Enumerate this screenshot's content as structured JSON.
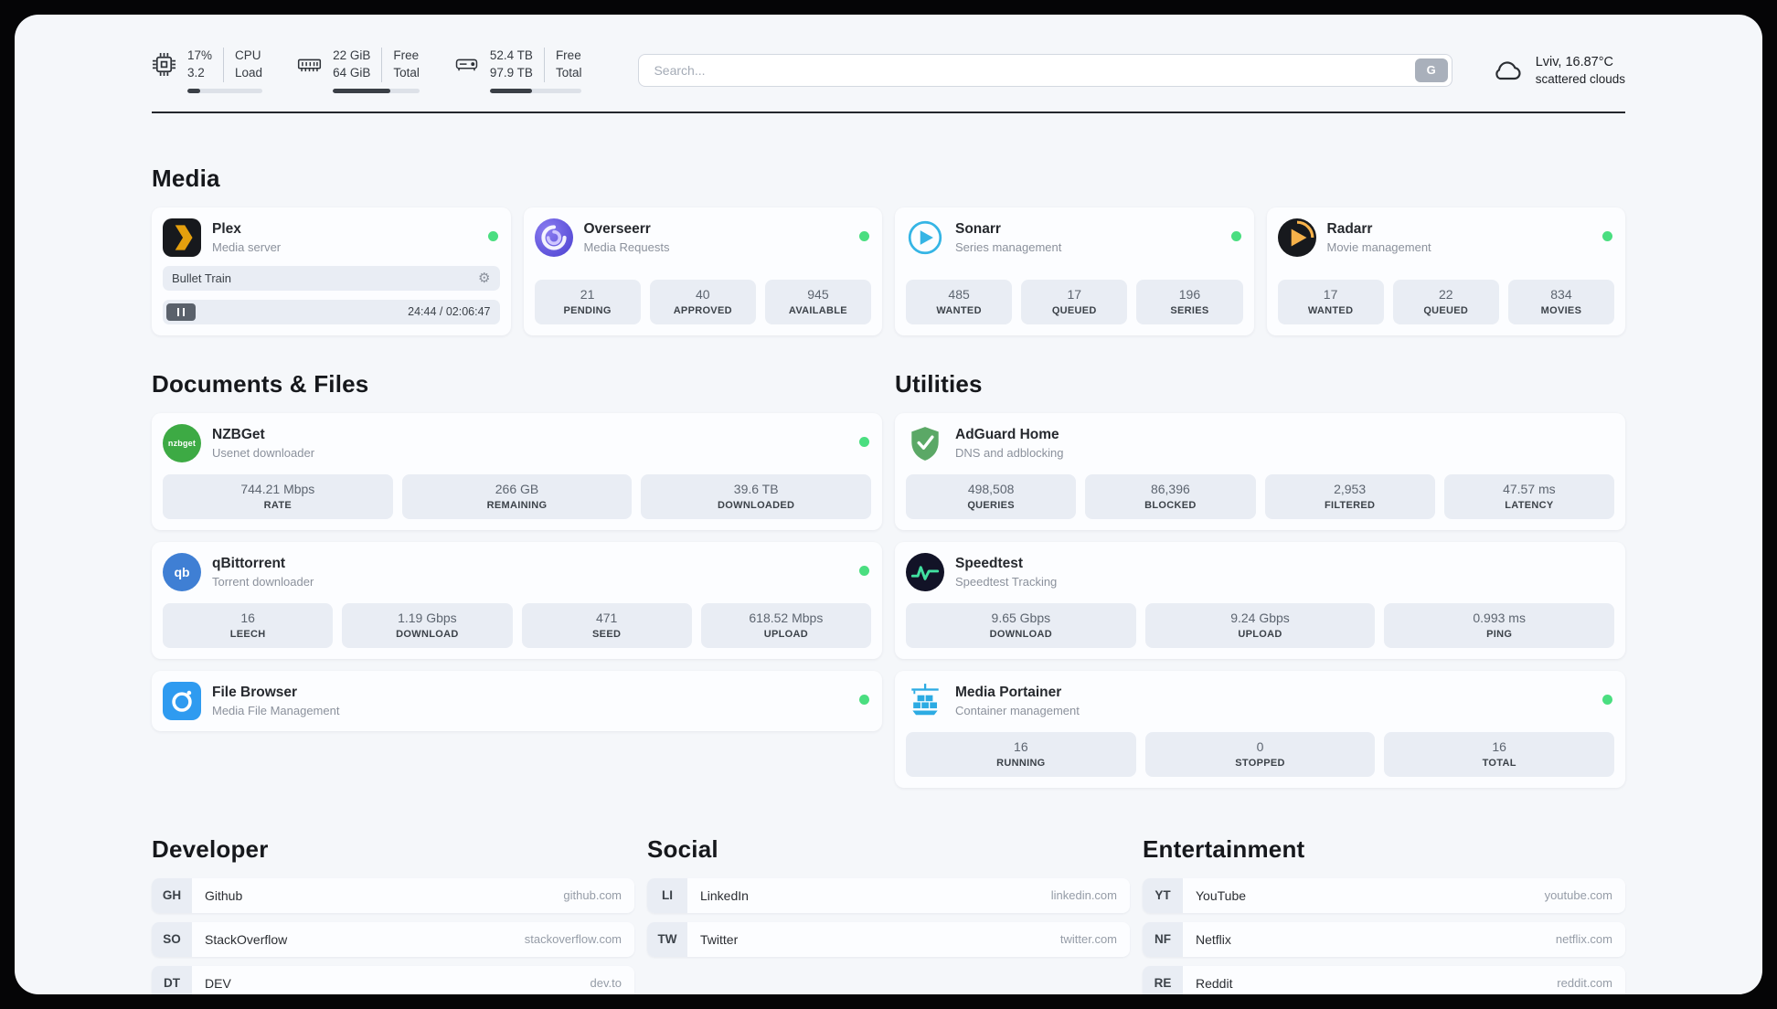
{
  "theme": {
    "status-online": "#4ade80",
    "plex": "#e5a00d",
    "sonarr": "#35b5e5",
    "radarr": "#f7b24a",
    "nzbget": "#3daa44",
    "qbittorrent": "#3f7fd4",
    "filebrowser": "#2f9bf0",
    "adguard": "#5ba866",
    "speedtest": "#41e0a0",
    "portainer": "#2cabe3"
  },
  "header": {
    "cpu": {
      "icon": "cpu-icon",
      "percent": "17%",
      "load": "3.2",
      "label_top": "CPU",
      "label_bottom": "Load",
      "progress": 17
    },
    "ram": {
      "icon": "ram-icon",
      "value_top": "22 GiB",
      "value_bottom": "64 GiB",
      "label_top": "Free",
      "label_bottom": "Total",
      "progress": 66
    },
    "disk": {
      "icon": "disk-icon",
      "value_top": "52.4 TB",
      "value_bottom": "97.9 TB",
      "label_top": "Free",
      "label_bottom": "Total",
      "progress": 46
    },
    "search": {
      "icon": "search-engine-icon",
      "placeholder": "Search...",
      "button_label": "G"
    },
    "weather": {
      "icon": "cloud-icon",
      "location": "Lviv, 16.87°C",
      "condition": "scattered clouds"
    }
  },
  "sections": {
    "media": {
      "title": "Media",
      "cards": [
        {
          "icon": "plex-icon",
          "name": "Plex",
          "desc": "Media server",
          "status": "online",
          "player": {
            "title": "Bullet Train",
            "time": "24:44 / 02:06:47"
          }
        },
        {
          "icon": "overseerr-icon",
          "name": "Overseerr",
          "desc": "Media Requests",
          "status": "online",
          "stats": [
            {
              "value": "21",
              "label": "PENDING"
            },
            {
              "value": "40",
              "label": "APPROVED"
            },
            {
              "value": "945",
              "label": "AVAILABLE"
            }
          ]
        },
        {
          "icon": "sonarr-icon",
          "name": "Sonarr",
          "desc": "Series management",
          "status": "online",
          "stats": [
            {
              "value": "485",
              "label": "WANTED"
            },
            {
              "value": "17",
              "label": "QUEUED"
            },
            {
              "value": "196",
              "label": "SERIES"
            }
          ]
        },
        {
          "icon": "radarr-icon",
          "name": "Radarr",
          "desc": "Movie management",
          "status": "online",
          "stats": [
            {
              "value": "17",
              "label": "WANTED"
            },
            {
              "value": "22",
              "label": "QUEUED"
            },
            {
              "value": "834",
              "label": "MOVIES"
            }
          ]
        }
      ]
    },
    "documents": {
      "title": "Documents & Files",
      "cards": [
        {
          "icon": "nzbget-icon",
          "icon_text": "nzbget",
          "name": "NZBGet",
          "desc": "Usenet downloader",
          "status": "online",
          "stats": [
            {
              "value": "744.21 Mbps",
              "label": "RATE"
            },
            {
              "value": "266 GB",
              "label": "REMAINING"
            },
            {
              "value": "39.6 TB",
              "label": "DOWNLOADED"
            }
          ]
        },
        {
          "icon": "qbittorrent-icon",
          "icon_text": "qb",
          "name": "qBittorrent",
          "desc": "Torrent downloader",
          "status": "online",
          "stats": [
            {
              "value": "16",
              "label": "LEECH"
            },
            {
              "value": "1.19 Gbps",
              "label": "DOWNLOAD"
            },
            {
              "value": "471",
              "label": "SEED"
            },
            {
              "value": "618.52 Mbps",
              "label": "UPLOAD"
            }
          ]
        },
        {
          "icon": "filebrowser-icon",
          "name": "File Browser",
          "desc": "Media File Management",
          "status": "online"
        }
      ]
    },
    "utilities": {
      "title": "Utilities",
      "cards": [
        {
          "icon": "adguard-icon",
          "name": "AdGuard Home",
          "desc": "DNS and adblocking",
          "stats": [
            {
              "value": "498,508",
              "label": "QUERIES"
            },
            {
              "value": "86,396",
              "label": "BLOCKED"
            },
            {
              "value": "2,953",
              "label": "FILTERED"
            },
            {
              "value": "47.57 ms",
              "label": "LATENCY"
            }
          ]
        },
        {
          "icon": "speedtest-icon",
          "name": "Speedtest",
          "desc": "Speedtest Tracking",
          "stats": [
            {
              "value": "9.65 Gbps",
              "label": "DOWNLOAD"
            },
            {
              "value": "9.24 Gbps",
              "label": "UPLOAD"
            },
            {
              "value": "0.993 ms",
              "label": "PING"
            }
          ]
        },
        {
          "icon": "portainer-icon",
          "name": "Media Portainer",
          "desc": "Container management",
          "status": "online",
          "stats": [
            {
              "value": "16",
              "label": "RUNNING"
            },
            {
              "value": "0",
              "label": "STOPPED"
            },
            {
              "value": "16",
              "label": "TOTAL"
            }
          ]
        }
      ]
    },
    "bookmarks": [
      {
        "title": "Developer",
        "items": [
          {
            "abbr": "GH",
            "name": "Github",
            "url": "github.com"
          },
          {
            "abbr": "SO",
            "name": "StackOverflow",
            "url": "stackoverflow.com"
          },
          {
            "abbr": "DT",
            "name": "DEV",
            "url": "dev.to"
          }
        ]
      },
      {
        "title": "Social",
        "items": [
          {
            "abbr": "LI",
            "name": "LinkedIn",
            "url": "linkedin.com"
          },
          {
            "abbr": "TW",
            "name": "Twitter",
            "url": "twitter.com"
          }
        ]
      },
      {
        "title": "Entertainment",
        "items": [
          {
            "abbr": "YT",
            "name": "YouTube",
            "url": "youtube.com"
          },
          {
            "abbr": "NF",
            "name": "Netflix",
            "url": "netflix.com"
          },
          {
            "abbr": "RE",
            "name": "Reddit",
            "url": "reddit.com"
          }
        ]
      }
    ]
  }
}
